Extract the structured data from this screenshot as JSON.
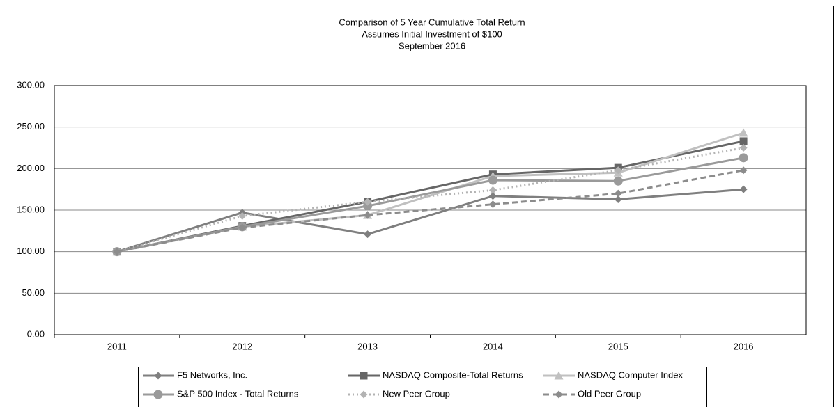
{
  "chart_data": {
    "type": "line",
    "title": "Comparison of 5 Year Cumulative Total Return",
    "subtitle": [
      "Assumes Initial Investment of $100",
      "September 2016"
    ],
    "categories": [
      "2011",
      "2012",
      "2013",
      "2014",
      "2015",
      "2016"
    ],
    "series": [
      {
        "name": "F5 Networks, Inc.",
        "color": "#7f7f7f",
        "marker": "diamond",
        "dash": "solid",
        "values": [
          100,
          147,
          121,
          167,
          163,
          175
        ]
      },
      {
        "name": "NASDAQ Composite-Total Returns",
        "color": "#666666",
        "marker": "square",
        "dash": "solid",
        "values": [
          100,
          131,
          160,
          193,
          201,
          233
        ]
      },
      {
        "name": "NASDAQ Computer Index",
        "color": "#c0c0c0",
        "marker": "triangle",
        "dash": "solid",
        "values": [
          100,
          130,
          144,
          191,
          195,
          243
        ]
      },
      {
        "name": "S&P 500 Index - Total Returns",
        "color": "#9a9a9a",
        "marker": "circle",
        "dash": "solid",
        "values": [
          100,
          130,
          155,
          186,
          185,
          213
        ]
      },
      {
        "name": "New Peer Group",
        "color": "#b3b3b3",
        "marker": "diamond",
        "dash": "dotted",
        "values": [
          100,
          143,
          160,
          174,
          198,
          225
        ]
      },
      {
        "name": "Old Peer Group",
        "color": "#8c8c8c",
        "marker": "diamond",
        "dash": "dashed",
        "values": [
          100,
          129,
          144,
          157,
          170,
          198
        ]
      }
    ],
    "ylim": [
      0,
      300
    ],
    "yticks": [
      {
        "value": 0,
        "label": "0.00"
      },
      {
        "value": 50,
        "label": "50.00"
      },
      {
        "value": 100,
        "label": "100.00"
      },
      {
        "value": 150,
        "label": "150.00"
      },
      {
        "value": 200,
        "label": "200.00"
      },
      {
        "value": 250,
        "label": "250.00"
      },
      {
        "value": 300,
        "label": "300.00"
      }
    ],
    "grid": true,
    "legend": "bottom"
  }
}
